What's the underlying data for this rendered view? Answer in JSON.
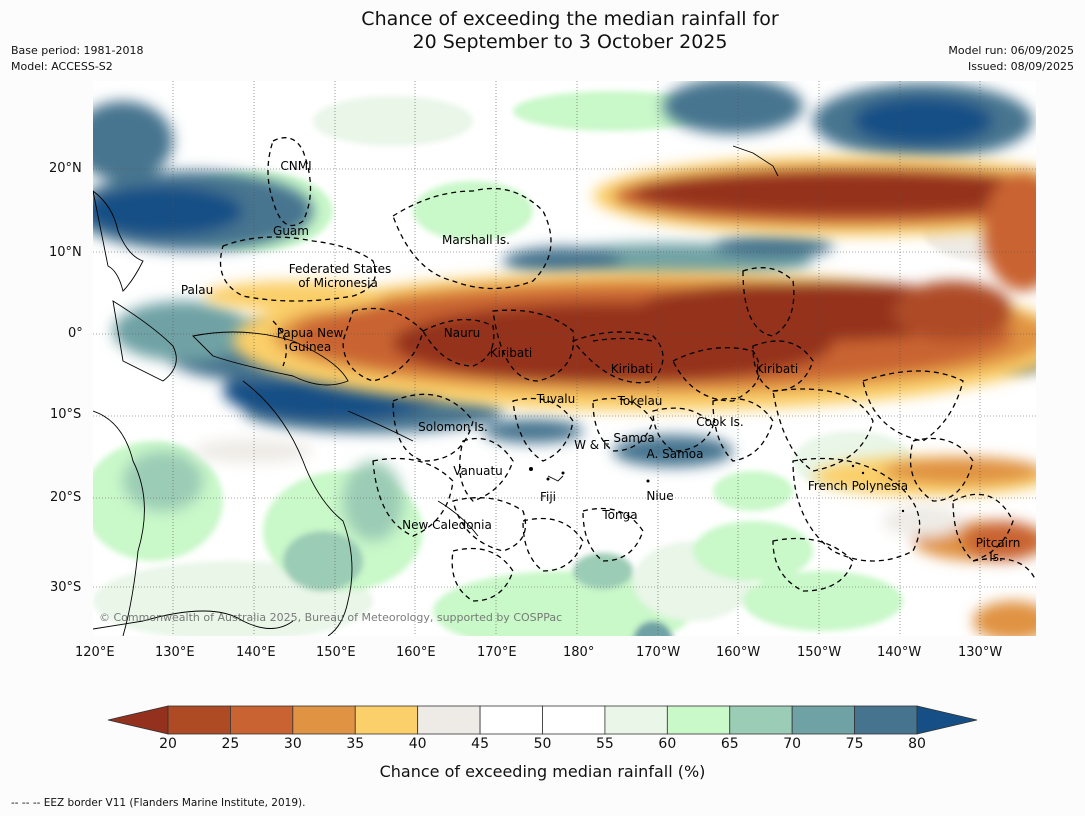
{
  "title": {
    "line1": "Chance of exceeding the median rainfall for",
    "line2": "20 September to 3 October 2025"
  },
  "meta": {
    "base_period": "Base period: 1981-2018",
    "model": "Model: ACCESS-S2",
    "model_run": "Model run: 06/09/2025",
    "issued": "Issued: 08/09/2025"
  },
  "map": {
    "copyright": "© Commonwealth of Australia 2025, Bureau of Meteorology, supported by COSPPac",
    "lat_labels": [
      "20°N",
      "10°N",
      "0°",
      "10°S",
      "20°S",
      "30°S"
    ],
    "lon_labels": [
      "120°E",
      "130°E",
      "140°E",
      "150°E",
      "160°E",
      "170°E",
      "180°",
      "170°W",
      "160°W",
      "150°W",
      "140°W",
      "130°W"
    ],
    "regions": [
      {
        "name": "CNMI"
      },
      {
        "name": "Guam"
      },
      {
        "name": "Marshall Is."
      },
      {
        "name": "Federated States"
      },
      {
        "name": "of Micronesia"
      },
      {
        "name": "Palau"
      },
      {
        "name": "Papua New"
      },
      {
        "name": "Guinea"
      },
      {
        "name": "Nauru"
      },
      {
        "name": "Kiribati"
      },
      {
        "name": "Kiribati"
      },
      {
        "name": "Kiribati"
      },
      {
        "name": "Tuvalu"
      },
      {
        "name": "Tokelau"
      },
      {
        "name": "Cook Is."
      },
      {
        "name": "Solomon Is."
      },
      {
        "name": "Samoa"
      },
      {
        "name": "W & F"
      },
      {
        "name": "A. Samoa"
      },
      {
        "name": "Vanuatu"
      },
      {
        "name": "Fiji"
      },
      {
        "name": "Niue"
      },
      {
        "name": "Tonga"
      },
      {
        "name": "French Polynesia"
      },
      {
        "name": "New Caledonia"
      },
      {
        "name": "Pitcairn"
      },
      {
        "name": "Is."
      }
    ]
  },
  "colorbar": {
    "ticks": [
      "20",
      "25",
      "30",
      "35",
      "40",
      "45",
      "50",
      "55",
      "60",
      "65",
      "70",
      "75",
      "80"
    ],
    "colors": [
      "#ae4b25",
      "#c96331",
      "#e09343",
      "#fbcf69",
      "#eeebe6",
      "#ffffff",
      "#ffffff",
      "#e9f6e8",
      "#c9f8c9",
      "#9bccb5",
      "#6fa2a5",
      "#46748f"
    ],
    "low_color": "#94311e",
    "high_color": "#164f86",
    "label": "Chance of exceeding median rainfall (%)"
  },
  "footer": "--  --  -- EEZ border V11 (Flanders Marine Institute, 2019)."
}
